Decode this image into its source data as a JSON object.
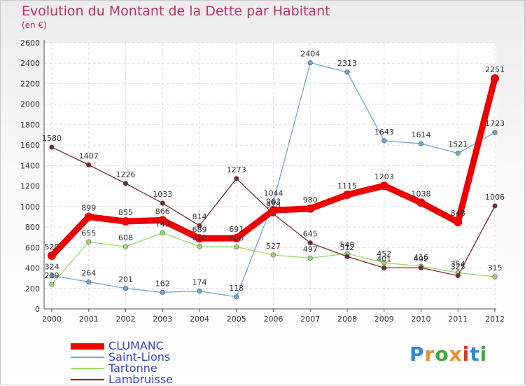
{
  "title": "Evolution du Montant de la Dette par Habitant",
  "subtitle": "(en €)",
  "brand": {
    "letters": [
      "P",
      "r",
      "o",
      "x",
      "i",
      "t",
      "i"
    ],
    "colors": [
      "#2f88d6",
      "#e8902a",
      "#3aaa3a",
      "#e8902a",
      "#d33",
      "#2f88d6",
      "#3aaa3a"
    ]
  },
  "chart_data": {
    "type": "line",
    "x": [
      "2000",
      "2001",
      "2002",
      "2003",
      "2004",
      "2005",
      "2006",
      "2007",
      "2008",
      "2009",
      "2010",
      "2011",
      "2012"
    ],
    "ylim": [
      0,
      2600
    ],
    "yticks": [
      "0",
      "200",
      "400",
      "600",
      "800",
      "1000",
      "1200",
      "1400",
      "1600",
      "1800",
      "2000",
      "2200",
      "2400",
      "2600"
    ],
    "grid": true,
    "legend": "bottom-left",
    "series": [
      {
        "name": "CLUMANC",
        "color": "#ee0000",
        "values": [
          520,
          899,
          855,
          866,
          689,
          691,
          963,
          980,
          1115,
          1203,
          1038,
          848,
          2251
        ],
        "labels": [
          "520",
          "899",
          "855",
          "866",
          "689",
          "691",
          "963",
          "980",
          "1115",
          "1203",
          "1038",
          "848",
          "2251"
        ]
      },
      {
        "name": "Saint-Lions",
        "color": "#6fa7d3",
        "values": [
          324,
          264,
          201,
          162,
          174,
          118,
          1044,
          2404,
          2313,
          1643,
          1614,
          1521,
          1723
        ],
        "labels": [
          "324",
          "264",
          "201",
          "162",
          "174",
          "118",
          "1044",
          "2404",
          "2313",
          "1643",
          "1614",
          "1521",
          "1723"
        ]
      },
      {
        "name": "Tartonne",
        "color": "#99dd66",
        "values": [
          239,
          655,
          608,
          743,
          610,
          606,
          527,
          497,
          540,
          452,
          416,
          354,
          315
        ],
        "labels": [
          "239",
          "655",
          "608",
          "743",
          "610",
          "606",
          "527",
          "497",
          "540",
          "452",
          "416",
          "354",
          "315"
        ]
      },
      {
        "name": "Lambruisse",
        "color": "#7a2a2a",
        "values": [
          1580,
          1407,
          1226,
          1033,
          814,
          1273,
          928,
          645,
          512,
          401,
          402,
          325,
          1006
        ],
        "labels": [
          "1580",
          "1407",
          "1226",
          "1033",
          "814",
          "1273",
          "928",
          "645",
          "512",
          "401",
          "402",
          "325",
          "1006"
        ]
      }
    ]
  }
}
